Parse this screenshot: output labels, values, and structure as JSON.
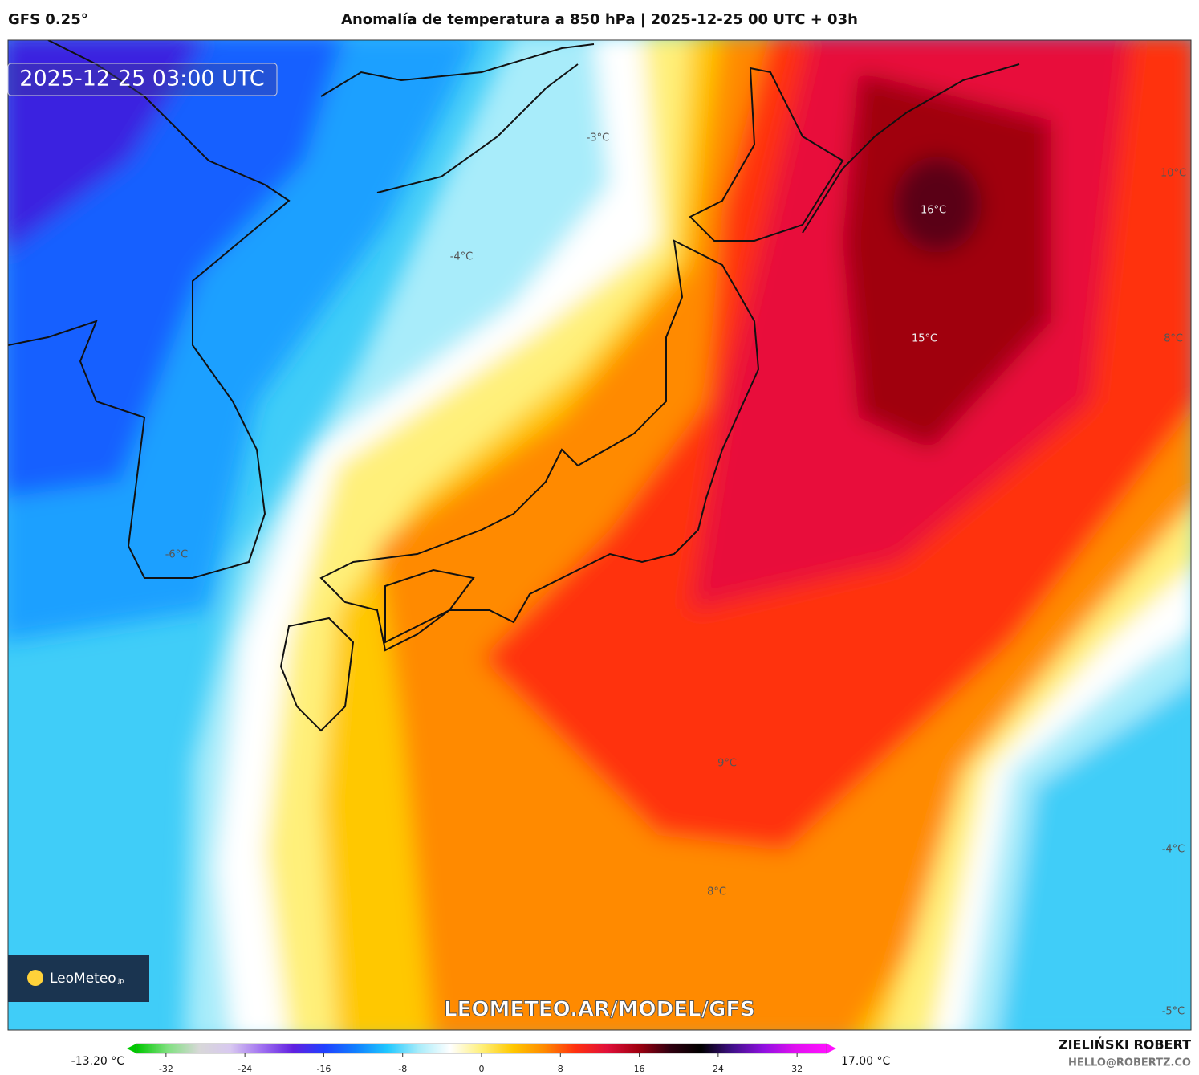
{
  "header": {
    "model": "GFS 0.25°",
    "title": "Anomalía de temperatura a 850 hPa | 2025-12-25 00 UTC + 03h"
  },
  "map": {
    "timestamp": "2025-12-25 03:00 UTC",
    "watermark": "LEOMETEO.AR/MODEL/GFS",
    "logo": "LeoMeteo",
    "logo_suffix": "jp",
    "labels": [
      "-3°C",
      "-4°C",
      "-6°C",
      "16°C",
      "15°C",
      "10°C",
      "8°C",
      "9°C",
      "8°C",
      "-4°C",
      "-5°C"
    ]
  },
  "colorbar": {
    "min_label": "-13.20 °C",
    "max_label": "17.00 °C",
    "range": [
      -35,
      35
    ],
    "ticks": [
      -32,
      -24,
      -16,
      -8,
      0,
      8,
      16,
      24,
      32
    ],
    "colors": [
      "#00c800",
      "#80e080",
      "#d8d8d8",
      "#d8c8f0",
      "#a070f0",
      "#6020e0",
      "#2040ff",
      "#1080ff",
      "#20c8ff",
      "#a8ecfa",
      "#ffffff",
      "#fff07a",
      "#ffc800",
      "#ff8a00",
      "#ff3010",
      "#e0103a",
      "#a00010",
      "#300010",
      "#000000",
      "#40108a",
      "#9010e0",
      "#e010f0",
      "#ff10ff"
    ]
  },
  "footer": {
    "author": "ZIELIŃSKI ROBERT",
    "email": "HELLO@ROBERTZ.CO"
  }
}
